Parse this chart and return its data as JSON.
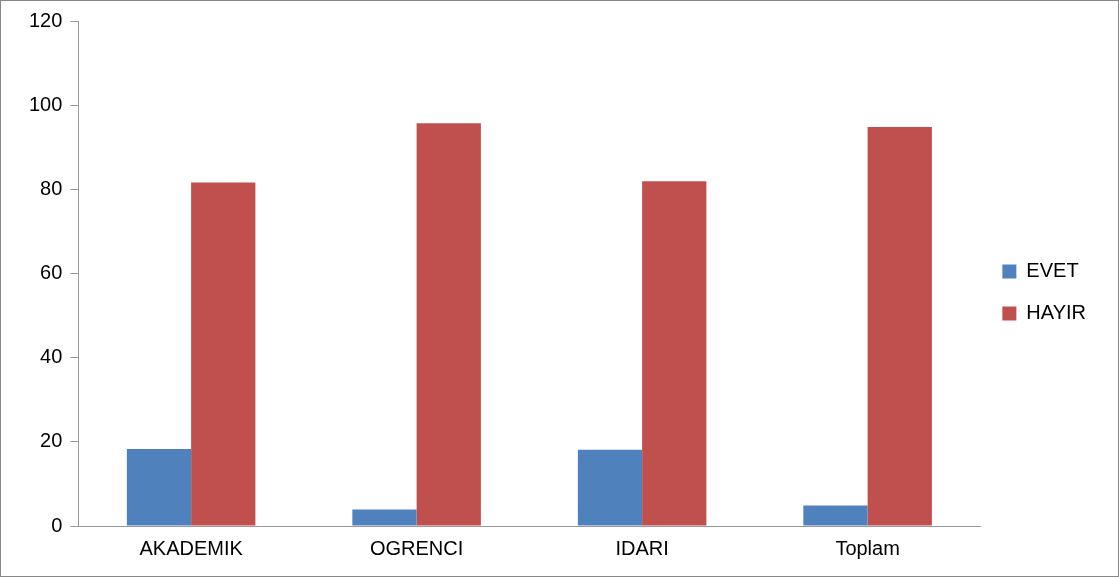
{
  "chart_data": {
    "type": "bar",
    "categories": [
      "AKADEMIK",
      "OGRENCI",
      "IDARI",
      "Toplam"
    ],
    "series": [
      {
        "name": "EVET",
        "color": "#4f81bd",
        "values": [
          18.3,
          3.9,
          18.1,
          4.9
        ]
      },
      {
        "name": "HAYIR",
        "color": "#c0504d",
        "values": [
          81.6,
          95.7,
          81.9,
          94.8
        ]
      }
    ],
    "ylim": [
      0,
      120
    ],
    "yticks": [
      0,
      20,
      40,
      60,
      80,
      100,
      120
    ],
    "grid": false,
    "legend": "right"
  }
}
